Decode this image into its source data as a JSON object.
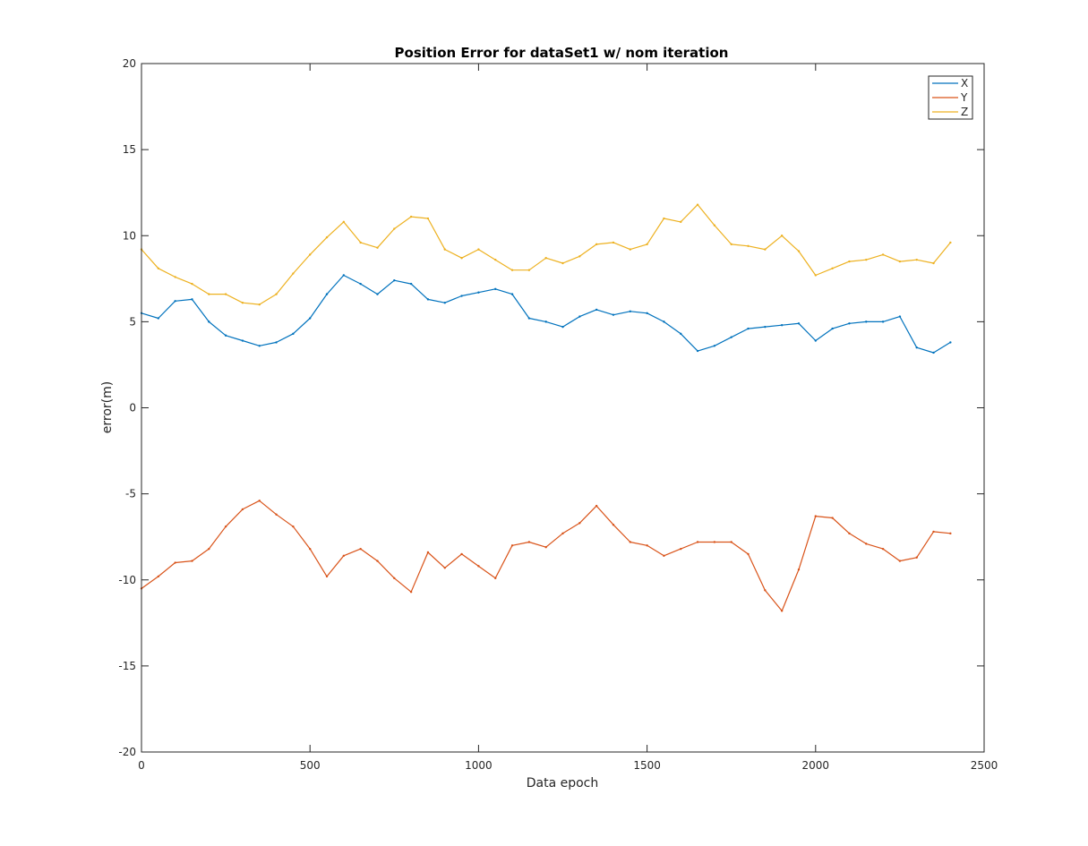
{
  "chart_data": {
    "type": "line",
    "title": "Position Error for dataSet1 w/ nom iteration",
    "xlabel": "Data epoch",
    "ylabel": "error(m)",
    "xlim": [
      0,
      2500
    ],
    "ylim": [
      -20,
      20
    ],
    "xticks": [
      0,
      500,
      1000,
      1500,
      2000,
      2500
    ],
    "yticks": [
      -20,
      -15,
      -10,
      -5,
      0,
      5,
      10,
      15,
      20
    ],
    "grid": false,
    "legend_position": "top-right",
    "x": [
      0,
      50,
      100,
      150,
      200,
      250,
      300,
      350,
      400,
      450,
      500,
      550,
      600,
      650,
      700,
      750,
      800,
      850,
      900,
      950,
      1000,
      1050,
      1100,
      1150,
      1200,
      1250,
      1300,
      1350,
      1400,
      1450,
      1500,
      1550,
      1600,
      1650,
      1700,
      1750,
      1800,
      1850,
      1900,
      1950,
      2000,
      2050,
      2100,
      2150,
      2200,
      2250,
      2300,
      2350,
      2400
    ],
    "series": [
      {
        "name": "X",
        "color": "#0072BD",
        "values": [
          5.5,
          5.2,
          6.2,
          6.3,
          5.0,
          4.2,
          3.9,
          3.6,
          3.8,
          4.3,
          5.2,
          6.6,
          7.7,
          7.2,
          6.6,
          7.4,
          7.2,
          6.3,
          6.1,
          6.5,
          6.7,
          6.9,
          6.6,
          5.2,
          5.0,
          4.7,
          5.3,
          5.7,
          5.4,
          5.6,
          5.5,
          5.0,
          4.3,
          3.3,
          3.6,
          4.1,
          4.6,
          4.7,
          4.8,
          4.9,
          3.9,
          4.6,
          4.9,
          5.0,
          5.0,
          5.3,
          3.5,
          3.2,
          3.8
        ]
      },
      {
        "name": "Y",
        "color": "#D95319",
        "values": [
          -10.5,
          -9.8,
          -9.0,
          -8.9,
          -8.2,
          -6.9,
          -5.9,
          -5.4,
          -6.2,
          -6.9,
          -8.2,
          -9.8,
          -8.6,
          -8.2,
          -8.9,
          -9.9,
          -10.7,
          -8.4,
          -9.3,
          -8.5,
          -9.2,
          -9.9,
          -8.0,
          -7.8,
          -8.1,
          -7.3,
          -6.7,
          -5.7,
          -6.8,
          -7.8,
          -8.0,
          -8.6,
          -8.2,
          -7.8,
          -7.8,
          -7.8,
          -8.5,
          -10.6,
          -11.8,
          -9.4,
          -6.3,
          -6.4,
          -7.3,
          -7.9,
          -8.2,
          -8.9,
          -8.7,
          -7.2,
          -7.3
        ]
      },
      {
        "name": "Z",
        "color": "#EDB120",
        "values": [
          9.2,
          8.1,
          7.6,
          7.2,
          6.6,
          6.6,
          6.1,
          6.0,
          6.6,
          7.8,
          8.9,
          9.9,
          10.8,
          9.6,
          9.3,
          10.4,
          11.1,
          11.0,
          9.2,
          8.7,
          9.2,
          8.6,
          8.0,
          8.0,
          8.7,
          8.4,
          8.8,
          9.5,
          9.6,
          9.2,
          9.5,
          11.0,
          10.8,
          11.8,
          10.6,
          9.5,
          9.4,
          9.2,
          10.0,
          9.1,
          7.7,
          8.1,
          8.5,
          8.6,
          8.9,
          8.5,
          8.6,
          8.4,
          9.6
        ]
      }
    ]
  }
}
